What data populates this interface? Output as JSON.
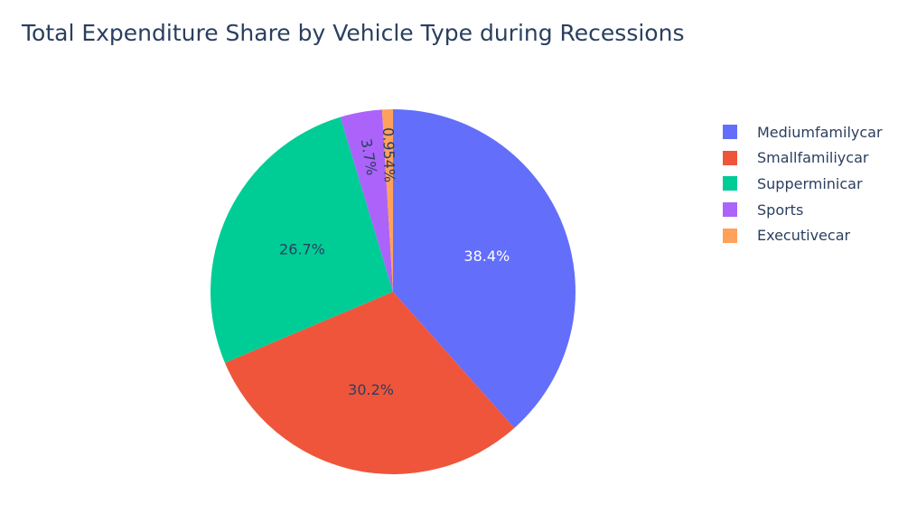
{
  "title": "Total Expenditure Share by Vehicle Type during Recessions",
  "chart_data": {
    "type": "pie",
    "title": "Total Expenditure Share by Vehicle Type during Recessions",
    "labels": [
      "Mediumfamilycar",
      "Smallfamiliycar",
      "Supperminicar",
      "Sports",
      "Executivecar"
    ],
    "values": [
      38.4,
      30.2,
      26.7,
      3.7,
      0.954
    ],
    "text_labels": [
      "38.4%",
      "30.2%",
      "26.7%",
      "3.7%",
      "0.954%"
    ],
    "colors": [
      "#636efa",
      "#EF553B",
      "#00cc96",
      "#ab63fa",
      "#FFA15A"
    ],
    "label_colors": [
      "#ffffff",
      "#2a3f5f",
      "#2a3f5f",
      "#2a3f5f",
      "#2a3f5f"
    ],
    "legend_position": "top-right",
    "direction": "clockwise",
    "start": "top"
  },
  "legend": {
    "items": [
      {
        "label": "Mediumfamilycar",
        "color": "#636efa"
      },
      {
        "label": "Smallfamiliycar",
        "color": "#EF553B"
      },
      {
        "label": "Supperminicar",
        "color": "#00cc96"
      },
      {
        "label": "Sports",
        "color": "#ab63fa"
      },
      {
        "label": "Executivecar",
        "color": "#FFA15A"
      }
    ]
  }
}
